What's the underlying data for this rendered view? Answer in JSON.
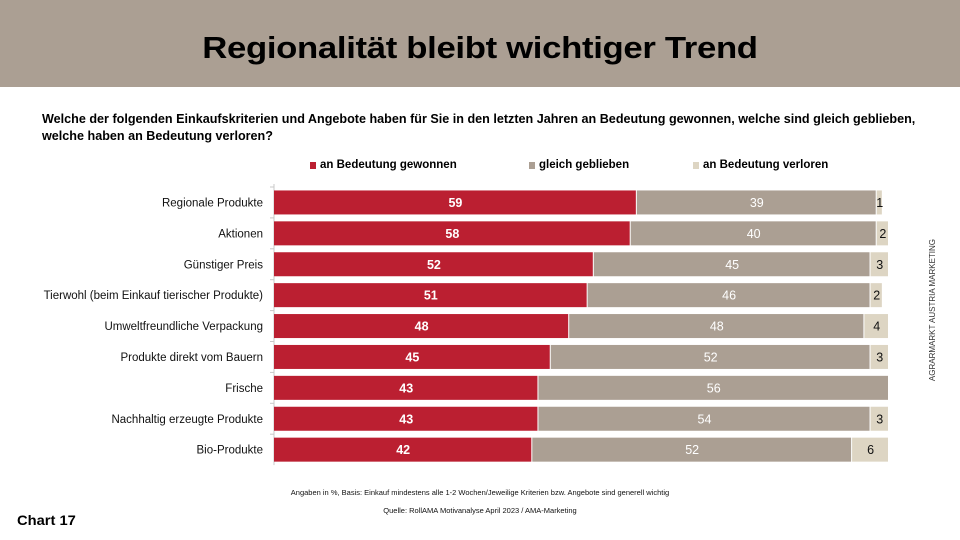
{
  "header": {
    "title": "Regionalität bleibt wichtiger Trend"
  },
  "question": "Welche der folgenden Einkaufskriterien und Angebote haben für Sie in den letzten Jahren an Bedeutung gewonnen, welche sind gleich geblieben, welche haben an Bedeutung verloren?",
  "side_label": "AGRARMARKT AUSTRIA MARKETING",
  "footnotes": {
    "basis": "Angaben in %, Basis: Einkauf mindestens alle 1-2 Wochen/Jeweilige Kriterien bzw. Angebote sind generell wichtig",
    "source": "Quelle: RollAMA Motivanalyse April 2023 / AMA-Marketing"
  },
  "chart_number": "Chart 17",
  "colors": {
    "gained": "#bb1f31",
    "same": "#ab9f93",
    "lost": "#ddd5c3",
    "header": "#ab9f93"
  },
  "chart_data": {
    "type": "bar",
    "orientation": "horizontal",
    "stacked": true,
    "title": "Regionalität bleibt wichtiger Trend",
    "xlabel": "",
    "ylabel": "",
    "xlim": [
      0,
      100
    ],
    "unit": "%",
    "grid": false,
    "legend_position": "top",
    "categories": [
      "Regionale Produkte",
      "Aktionen",
      "Günstiger Preis",
      "Tierwohl (beim Einkauf tierischer Produkte)",
      "Umweltfreundliche Verpackung",
      "Produkte direkt vom Bauern",
      "Frische",
      "Nachhaltig erzeugte Produkte",
      "Bio-Produkte"
    ],
    "series": [
      {
        "name": "an Bedeutung gewonnen",
        "color": "#bb1f31",
        "values": [
          59,
          58,
          52,
          51,
          48,
          45,
          43,
          43,
          42
        ]
      },
      {
        "name": "gleich geblieben",
        "color": "#ab9f93",
        "values": [
          39,
          40,
          45,
          46,
          48,
          52,
          56,
          54,
          52
        ]
      },
      {
        "name": "an Bedeutung verloren",
        "color": "#ddd5c3",
        "values": [
          1,
          2,
          3,
          2,
          4,
          3,
          null,
          3,
          6
        ]
      }
    ]
  }
}
